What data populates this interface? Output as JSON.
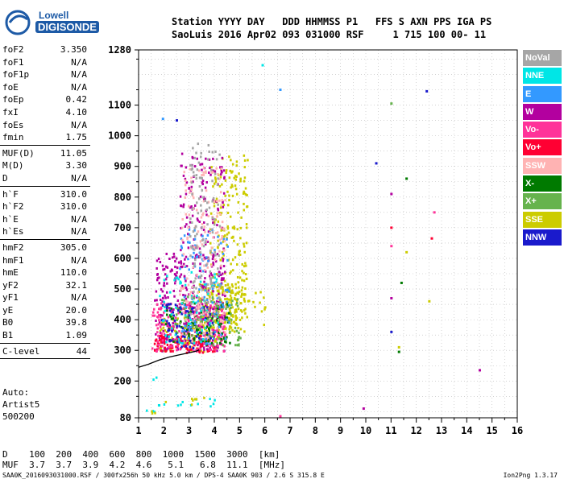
{
  "logo": {
    "line1": "Lowell",
    "line2": "DIGISONDE"
  },
  "header": {
    "row1": "Station YYYY DAY   DDD HHMMSS P1   FFS S AXN PPS IGA PS",
    "row2": "SaoLuis 2016 Apr02 093 031000 RSF     1 715 100 00- 11"
  },
  "params": [
    {
      "name": "foF2",
      "value": "3.350"
    },
    {
      "name": "foF1",
      "value": "N/A"
    },
    {
      "name": "foF1p",
      "value": "N/A"
    },
    {
      "name": "foE",
      "value": "N/A"
    },
    {
      "name": "foEp",
      "value": "0.42"
    },
    {
      "name": "fxI",
      "value": "4.10"
    },
    {
      "name": "foEs",
      "value": "N/A"
    },
    {
      "name": "fmin",
      "value": "1.75"
    },
    {
      "sep": true
    },
    {
      "name": "MUF(D)",
      "value": "11.05"
    },
    {
      "name": "M(D)",
      "value": "3.30"
    },
    {
      "name": "D",
      "value": "N/A"
    },
    {
      "sep": true
    },
    {
      "name": "h`F",
      "value": "310.0"
    },
    {
      "name": "h`F2",
      "value": "310.0"
    },
    {
      "name": "h`E",
      "value": "N/A"
    },
    {
      "name": "h`Es",
      "value": "N/A"
    },
    {
      "sep": true
    },
    {
      "name": "hmF2",
      "value": "305.0"
    },
    {
      "name": "hmF1",
      "value": "N/A"
    },
    {
      "name": "hmE",
      "value": "110.0"
    },
    {
      "name": "yF2",
      "value": "32.1"
    },
    {
      "name": "yF1",
      "value": "N/A"
    },
    {
      "name": "yE",
      "value": "20.0"
    },
    {
      "name": "B0",
      "value": "39.8"
    },
    {
      "name": "B1",
      "value": "1.09"
    },
    {
      "sep": true
    },
    {
      "name": "C-level",
      "value": "44"
    },
    {
      "sep": true
    }
  ],
  "auto": {
    "line1": "Auto:",
    "line2": "Artist5",
    "line3": "500200"
  },
  "legend": [
    {
      "label": "NoVal",
      "color": "#a6a6a6"
    },
    {
      "label": "NNE",
      "color": "#00e6e6"
    },
    {
      "label": "E",
      "color": "#3399ff"
    },
    {
      "label": "W",
      "color": "#b3009f"
    },
    {
      "label": "Vo-",
      "color": "#ff3399"
    },
    {
      "label": "Vo+",
      "color": "#ff0033"
    },
    {
      "label": "SSW",
      "color": "#ffb3b3"
    },
    {
      "label": "X-",
      "color": "#007a00"
    },
    {
      "label": "X+",
      "color": "#66b34d"
    },
    {
      "label": "SSE",
      "color": "#cccc00"
    },
    {
      "label": "NNW",
      "color": "#1a1acc"
    }
  ],
  "footer": {
    "line1": "D    100  200  400  600  800  1000  1500  3000  [km]",
    "line2": "MUF  3.7  3.7  3.9  4.2  4.6   5.1   6.8  11.1  [MHz]",
    "filename": "SAA0K_2016093031000.RSF / 300fx256h 50 kHz 5.0 km / DPS-4 SAA0K 903 / 2.6 S 315.8 E",
    "version": "Ion2Png 1.3.17"
  },
  "chart_data": {
    "type": "scatter",
    "title": "",
    "xlabel": "",
    "ylabel": "",
    "xlim": [
      1,
      16
    ],
    "ylim": [
      80,
      1280
    ],
    "x_ticks": [
      1,
      2,
      3,
      4,
      5,
      6,
      7,
      8,
      9,
      10,
      11,
      12,
      13,
      14,
      15,
      16
    ],
    "y_ticks": [
      80,
      200,
      300,
      400,
      500,
      600,
      700,
      800,
      900,
      1000,
      1100,
      1280
    ],
    "grid": true,
    "legend_placement": "right",
    "trace_curve": {
      "x": [
        1.0,
        1.4,
        1.8,
        2.2,
        2.6,
        3.0,
        3.3,
        3.4
      ],
      "y": [
        245,
        255,
        268,
        278,
        285,
        292,
        298,
        302
      ]
    },
    "clusters": [
      {
        "series": "SSE",
        "x": [
          3.3,
          5.2
        ],
        "y": [
          360,
          520
        ],
        "density": 0.9
      },
      {
        "series": "SSE",
        "x": [
          3.8,
          5.3
        ],
        "y": [
          480,
          940
        ],
        "density": 0.35
      },
      {
        "series": "SSE",
        "x": [
          1.8,
          4.2
        ],
        "y": [
          300,
          420
        ],
        "density": 0.5
      },
      {
        "series": "W",
        "x": [
          1.6,
          4.4
        ],
        "y": [
          300,
          620
        ],
        "density": 0.5
      },
      {
        "series": "W",
        "x": [
          2.6,
          4.4
        ],
        "y": [
          600,
          950
        ],
        "density": 0.25
      },
      {
        "series": "Vo+",
        "x": [
          1.6,
          4.0
        ],
        "y": [
          295,
          360
        ],
        "density": 0.9
      },
      {
        "series": "Vo-",
        "x": [
          1.5,
          4.4
        ],
        "y": [
          300,
          460
        ],
        "density": 0.55
      },
      {
        "series": "X-",
        "x": [
          2.0,
          4.6
        ],
        "y": [
          320,
          460
        ],
        "density": 0.35
      },
      {
        "series": "X+",
        "x": [
          2.4,
          5.0
        ],
        "y": [
          320,
          480
        ],
        "density": 0.35
      },
      {
        "series": "E",
        "x": [
          2.6,
          4.6
        ],
        "y": [
          320,
          700
        ],
        "density": 0.2
      },
      {
        "series": "NNW",
        "x": [
          1.8,
          4.0
        ],
        "y": [
          310,
          460
        ],
        "density": 0.25
      },
      {
        "series": "NNE",
        "x": [
          1.8,
          4.2
        ],
        "y": [
          320,
          560
        ],
        "density": 0.15
      },
      {
        "series": "SSW",
        "x": [
          2.6,
          4.4
        ],
        "y": [
          330,
          900
        ],
        "density": 0.2
      },
      {
        "series": "NoVal",
        "x": [
          3.0,
          4.2
        ],
        "y": [
          400,
          980
        ],
        "density": 0.25
      },
      {
        "series": "NNE",
        "x": [
          1.7,
          4.0
        ],
        "y": [
          120,
          150
        ],
        "density": 0.25
      },
      {
        "series": "SSE",
        "x": [
          2.0,
          3.8
        ],
        "y": [
          125,
          150
        ],
        "density": 0.2
      },
      {
        "series": "NNE",
        "x": [
          1.0,
          1.9
        ],
        "y": [
          95,
          110
        ],
        "density": 0.3
      },
      {
        "series": "SSE",
        "x": [
          1.0,
          1.8
        ],
        "y": [
          95,
          110
        ],
        "density": 0.3
      },
      {
        "series": "NNE",
        "x": [
          1.5,
          2.0
        ],
        "y": [
          205,
          220
        ],
        "density": 0.3
      },
      {
        "series": "SSE",
        "x": [
          5.0,
          6.0
        ],
        "y": [
          380,
          500
        ],
        "density": 0.15
      }
    ],
    "points": [
      {
        "series": "NNE",
        "x": 5.9,
        "y": 1230
      },
      {
        "series": "E",
        "x": 6.6,
        "y": 1150
      },
      {
        "series": "E",
        "x": 1.95,
        "y": 1055
      },
      {
        "series": "NNW",
        "x": 2.5,
        "y": 1050
      },
      {
        "series": "NNW",
        "x": 10.4,
        "y": 910
      },
      {
        "series": "X-",
        "x": 11.6,
        "y": 860
      },
      {
        "series": "X+",
        "x": 11.0,
        "y": 1105
      },
      {
        "series": "NNW",
        "x": 12.4,
        "y": 1145
      },
      {
        "series": "W",
        "x": 11.0,
        "y": 810
      },
      {
        "series": "Vo-",
        "x": 12.7,
        "y": 750
      },
      {
        "series": "Vo+",
        "x": 11.0,
        "y": 700
      },
      {
        "series": "Vo+",
        "x": 12.6,
        "y": 665
      },
      {
        "series": "Vo-",
        "x": 11.0,
        "y": 640
      },
      {
        "series": "SSE",
        "x": 11.6,
        "y": 620
      },
      {
        "series": "X-",
        "x": 11.4,
        "y": 520
      },
      {
        "series": "SSE",
        "x": 12.5,
        "y": 460
      },
      {
        "series": "W",
        "x": 11.0,
        "y": 470
      },
      {
        "series": "NNW",
        "x": 11.0,
        "y": 360
      },
      {
        "series": "X-",
        "x": 11.3,
        "y": 295
      },
      {
        "series": "SSE",
        "x": 11.3,
        "y": 310
      },
      {
        "series": "W",
        "x": 14.5,
        "y": 235
      },
      {
        "series": "Vo-",
        "x": 6.6,
        "y": 85
      },
      {
        "series": "W",
        "x": 9.9,
        "y": 110
      },
      {
        "series": "SSE",
        "x": 6.0,
        "y": 440
      }
    ]
  }
}
